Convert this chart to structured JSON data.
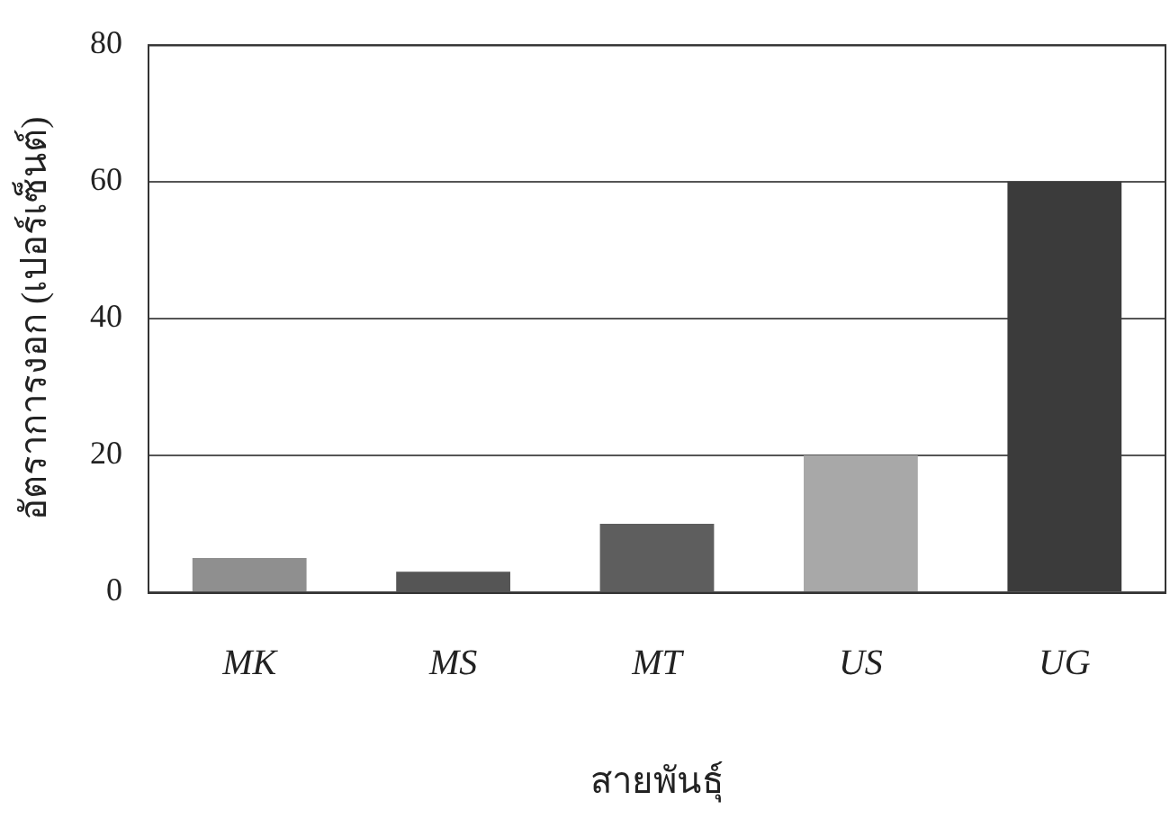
{
  "chart_data": {
    "type": "bar",
    "xlabel": "สายพันธุ์",
    "ylabel": "อัตราการงอก (เปอร์เซ็นต์)",
    "categories": [
      "MK",
      "MS",
      "MT",
      "US",
      "UG"
    ],
    "values": [
      5,
      3,
      10,
      20,
      60
    ],
    "colors": [
      "#8f8f8f",
      "#555555",
      "#5e5e5e",
      "#a8a8a8",
      "#3b3b3b"
    ],
    "ylim": [
      0,
      80
    ],
    "yticks": [
      0,
      20,
      40,
      60,
      80
    ],
    "grid": "y",
    "legend": false
  }
}
